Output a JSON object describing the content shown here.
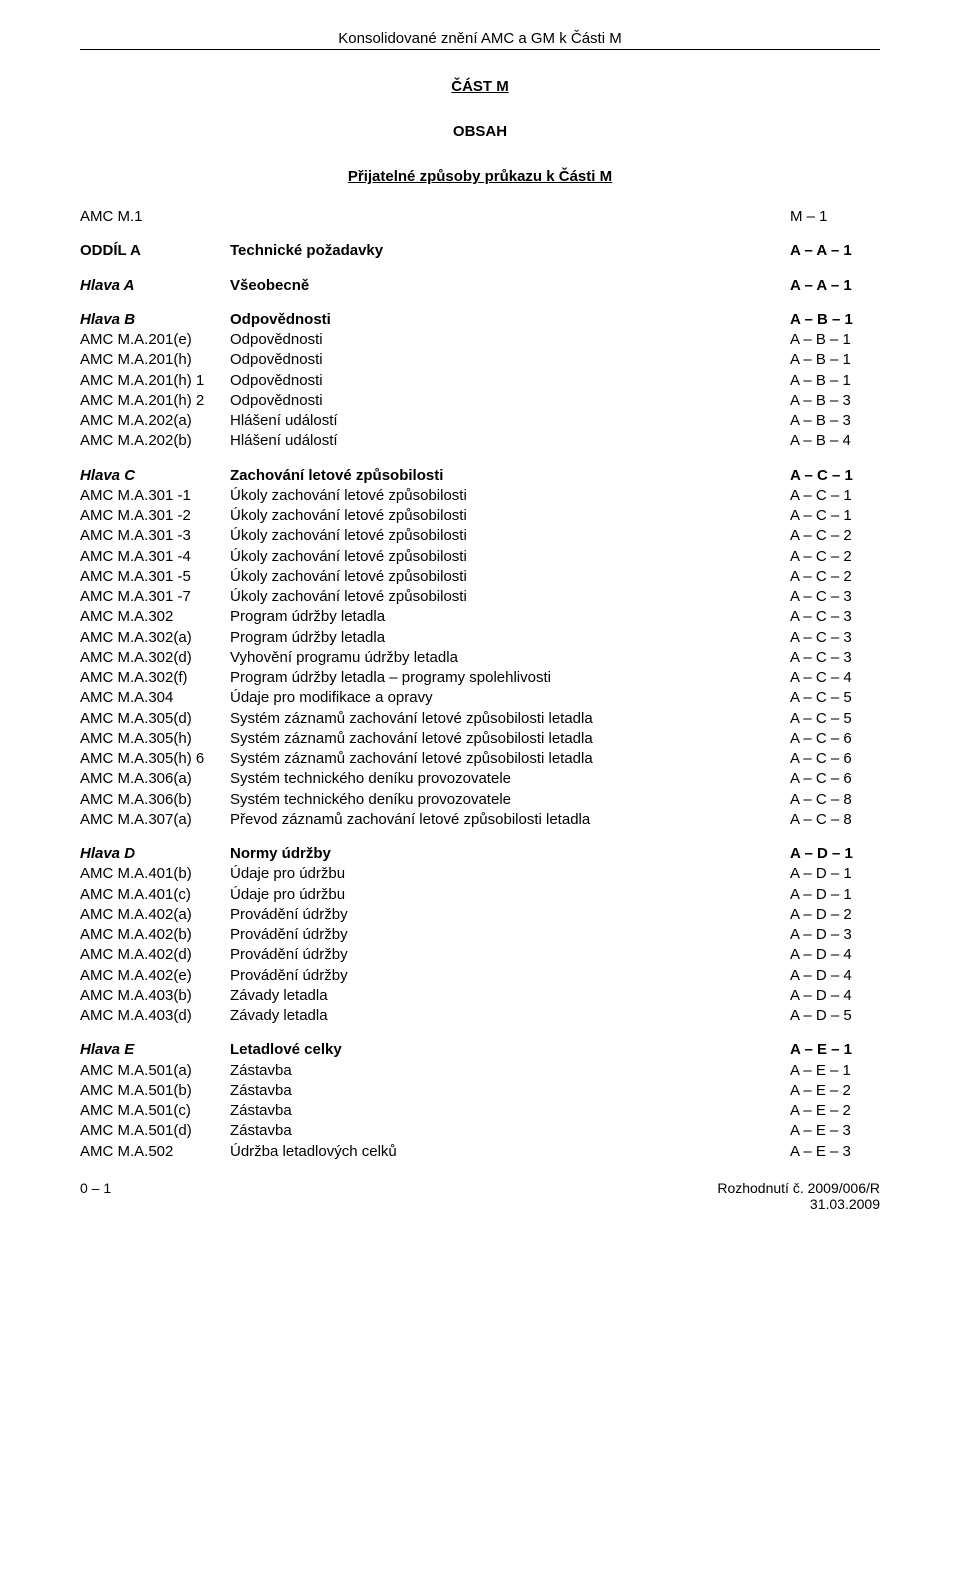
{
  "header": {
    "title": "Konsolidované znění AMC a GM k Části M",
    "partTitle": "ČÁST M",
    "obsah": "OBSAH",
    "subtitle": "Přijatelné způsoby průkazu k Části M"
  },
  "sections": [
    {
      "rows": [
        {
          "code": "AMC M.1",
          "desc": "",
          "page": "M – 1"
        }
      ]
    },
    {
      "rows": [
        {
          "code": "ODDÍL A",
          "desc": "Technické požadavky",
          "page": "A – A – 1",
          "bold": true
        }
      ]
    },
    {
      "rows": [
        {
          "code": "Hlava A",
          "desc": "Všeobecně",
          "page": "A – A – 1",
          "bold": true,
          "italicCode": true
        }
      ]
    },
    {
      "rows": [
        {
          "code": "Hlava B",
          "desc": "Odpovědnosti",
          "page": "A – B – 1",
          "bold": true,
          "italicCode": true
        },
        {
          "code": "AMC M.A.201(e)",
          "desc": "Odpovědnosti",
          "page": "A – B – 1"
        },
        {
          "code": "AMC M.A.201(h)",
          "desc": "Odpovědnosti",
          "page": "A – B – 1"
        },
        {
          "code": "AMC M.A.201(h) 1",
          "desc": "Odpovědnosti",
          "page": "A – B – 1"
        },
        {
          "code": "AMC M.A.201(h) 2",
          "desc": "Odpovědnosti",
          "page": "A – B – 3"
        },
        {
          "code": "AMC M.A.202(a)",
          "desc": "Hlášení událostí",
          "page": "A – B – 3"
        },
        {
          "code": "AMC M.A.202(b)",
          "desc": "Hlášení událostí",
          "page": "A – B – 4"
        }
      ]
    },
    {
      "rows": [
        {
          "code": "Hlava C",
          "desc": "Zachování letové způsobilosti",
          "page": "A – C – 1",
          "bold": true,
          "italicCode": true
        },
        {
          "code": "AMC M.A.301 -1",
          "desc": "Úkoly zachování letové způsobilosti",
          "page": "A – C – 1"
        },
        {
          "code": "AMC M.A.301 -2",
          "desc": "Úkoly zachování letové způsobilosti",
          "page": "A – C – 1"
        },
        {
          "code": "AMC M.A.301 -3",
          "desc": "Úkoly zachování letové způsobilosti",
          "page": "A – C – 2"
        },
        {
          "code": "AMC M.A.301 -4",
          "desc": "Úkoly zachování letové způsobilosti",
          "page": "A – C – 2"
        },
        {
          "code": "AMC M.A.301 -5",
          "desc": "Úkoly zachování letové způsobilosti",
          "page": "A – C – 2"
        },
        {
          "code": "AMC M.A.301 -7",
          "desc": "Úkoly zachování letové způsobilosti",
          "page": "A – C – 3"
        },
        {
          "code": "AMC M.A.302",
          "desc": "Program údržby letadla",
          "page": "A – C – 3"
        },
        {
          "code": "AMC M.A.302(a)",
          "desc": "Program údržby letadla",
          "page": "A – C – 3"
        },
        {
          "code": "AMC M.A.302(d)",
          "desc": "Vyhovění programu údržby letadla",
          "page": "A – C – 3"
        },
        {
          "code": "AMC M.A.302(f)",
          "desc": "Program údržby letadla – programy spolehlivosti",
          "page": "A – C – 4"
        },
        {
          "code": "AMC M.A.304",
          "desc": "Údaje pro modifikace a opravy",
          "page": "A – C – 5"
        },
        {
          "code": "AMC M.A.305(d)",
          "desc": "Systém záznamů zachování letové způsobilosti letadla",
          "page": "A – C – 5"
        },
        {
          "code": "AMC M.A.305(h)",
          "desc": "Systém záznamů zachování letové způsobilosti letadla",
          "page": "A – C – 6"
        },
        {
          "code": "AMC M.A.305(h) 6",
          "desc": "Systém záznamů zachování letové způsobilosti letadla",
          "page": "A – C – 6"
        },
        {
          "code": "AMC M.A.306(a)",
          "desc": "Systém technického deníku provozovatele",
          "page": "A – C – 6"
        },
        {
          "code": "AMC M.A.306(b)",
          "desc": "Systém technického deníku provozovatele",
          "page": "A – C – 8"
        },
        {
          "code": "AMC M.A.307(a)",
          "desc": "Převod záznamů zachování letové způsobilosti letadla",
          "page": "A – C – 8"
        }
      ]
    },
    {
      "rows": [
        {
          "code": "Hlava D",
          "desc": "Normy údržby",
          "page": "A – D – 1",
          "bold": true,
          "italicCode": true
        },
        {
          "code": "AMC M.A.401(b)",
          "desc": "Údaje pro údržbu",
          "page": "A – D – 1"
        },
        {
          "code": "AMC M.A.401(c)",
          "desc": "Údaje pro údržbu",
          "page": "A – D – 1"
        },
        {
          "code": "AMC M.A.402(a)",
          "desc": "Provádění údržby",
          "page": "A – D – 2"
        },
        {
          "code": "AMC M.A.402(b)",
          "desc": "Provádění údržby",
          "page": "A – D – 3"
        },
        {
          "code": "AMC M.A.402(d)",
          "desc": "Provádění údržby",
          "page": "A – D – 4"
        },
        {
          "code": "AMC M.A.402(e)",
          "desc": "Provádění údržby",
          "page": "A – D – 4"
        },
        {
          "code": "AMC M.A.403(b)",
          "desc": "Závady letadla",
          "page": "A – D – 4"
        },
        {
          "code": "AMC M.A.403(d)",
          "desc": "Závady letadla",
          "page": "A – D – 5"
        }
      ]
    },
    {
      "rows": [
        {
          "code": "Hlava E",
          "desc": "Letadlové celky",
          "page": "A – E – 1",
          "bold": true,
          "italicCode": true
        },
        {
          "code": "AMC M.A.501(a)",
          "desc": "Zástavba",
          "page": "A – E – 1"
        },
        {
          "code": "AMC M.A.501(b)",
          "desc": "Zástavba",
          "page": "A – E – 2"
        },
        {
          "code": "AMC M.A.501(c)",
          "desc": "Zástavba",
          "page": "A – E – 2"
        },
        {
          "code": "AMC M.A.501(d)",
          "desc": "Zástavba",
          "page": "A – E – 3"
        },
        {
          "code": "AMC M.A.502",
          "desc": "Údržba letadlových celků",
          "page": "A – E – 3"
        }
      ]
    }
  ],
  "footer": {
    "left": "0 – 1",
    "right1": "Rozhodnutí č. 2009/006/R",
    "right2": "31.03.2009"
  }
}
